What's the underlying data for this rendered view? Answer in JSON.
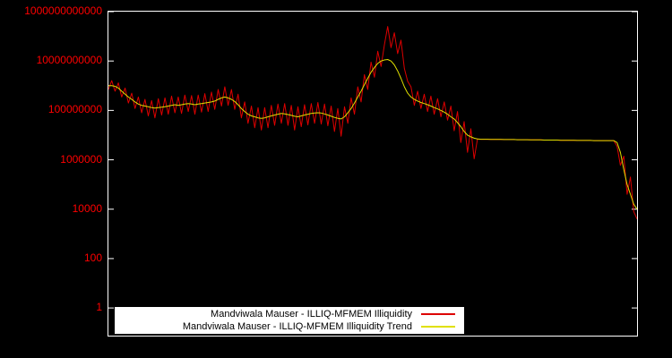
{
  "figure": {
    "background": "#000000",
    "frame_color": "#ffffff",
    "tick_label_color": "#ff0000",
    "legend_background": "#ffffff",
    "series_color_illiquidity": "#dd0000",
    "series_color_trend": "#e0e000"
  },
  "chart_data": {
    "type": "line",
    "title": "",
    "xlabel": "",
    "ylabel": "",
    "grid": false,
    "legend_position": "bottom-center",
    "y_scale": "log",
    "ylog_range": [
      -1.12,
      12
    ],
    "y_ticks": [
      1,
      100,
      10000,
      1000000,
      100000000,
      10000000000,
      1000000000000
    ],
    "y_tick_labels": [
      "1",
      "100",
      "10000",
      "1000000",
      "100000000",
      "10000000000",
      "1000000000000"
    ],
    "series": [
      {
        "id": "illiquidity",
        "name": "Mandviwala Mauser - ILLIQ-MFMEM Illiquidity",
        "color": "#dd0000",
        "values": [
          700000000.0,
          1600000000.0,
          600000000.0,
          1300000000.0,
          350000000.0,
          800000000.0,
          200000000.0,
          500000000.0,
          120000000.0,
          350000000.0,
          80000000.0,
          280000000.0,
          60000000.0,
          250000000.0,
          50000000.0,
          300000000.0,
          65000000.0,
          320000000.0,
          70000000.0,
          380000000.0,
          80000000.0,
          350000000.0,
          75000000.0,
          420000000.0,
          90000000.0,
          400000000.0,
          70000000.0,
          420000000.0,
          85000000.0,
          480000000.0,
          90000000.0,
          550000000.0,
          110000000.0,
          700000000.0,
          150000000.0,
          900000000.0,
          160000000.0,
          700000000.0,
          110000000.0,
          450000000.0,
          50000000.0,
          220000000.0,
          30000000.0,
          150000000.0,
          20000000.0,
          130000000.0,
          16000000.0,
          130000000.0,
          20000000.0,
          160000000.0,
          25000000.0,
          180000000.0,
          30000000.0,
          190000000.0,
          25000000.0,
          160000000.0,
          16000000.0,
          140000000.0,
          22000000.0,
          170000000.0,
          26000000.0,
          190000000.0,
          30000000.0,
          210000000.0,
          28000000.0,
          180000000.0,
          24000000.0,
          150000000.0,
          14000000.0,
          120000000.0,
          9000000.0,
          140000000.0,
          30000000.0,
          320000000.0,
          70000000.0,
          900000000.0,
          220000000.0,
          2800000000.0,
          700000000.0,
          9000000000.0,
          2200000000.0,
          25000000000.0,
          6000000000.0,
          45000000000.0,
          250000000000.0,
          35000000000.0,
          140000000000.0,
          20000000000.0,
          70000000000.0,
          5000000000.0,
          1500000000.0,
          900000000.0,
          160000000.0,
          600000000.0,
          120000000.0,
          450000000.0,
          90000000.0,
          380000000.0,
          70000000.0,
          300000000.0,
          55000000.0,
          220000000.0,
          40000000.0,
          150000000.0,
          15000000.0,
          90000000.0,
          5000000.0,
          35000000.0,
          2000000.0,
          18000000.0,
          1100000.0,
          7000000.0,
          6800000.0,
          6800000.0,
          6800000.0,
          6700000.0,
          6700000.0,
          6700000.0,
          6700000.0,
          6600000.0,
          6600000.0,
          6600000.0,
          6600000.0,
          6500000.0,
          6500000.0,
          6500000.0,
          6500000.0,
          6400000.0,
          6400000.0,
          6400000.0,
          6400000.0,
          6300000.0,
          6300000.0,
          6300000.0,
          6300000.0,
          6300000.0,
          6200000.0,
          6200000.0,
          6200000.0,
          6200000.0,
          6200000.0,
          6100000.0,
          6100000.0,
          6100000.0,
          6100000.0,
          6100000.0,
          6000000.0,
          6000000.0,
          6000000.0,
          6000000.0,
          6000000.0,
          6000000.0,
          6000000.0,
          3500000.0,
          600000.0,
          1400000.0,
          40000.0,
          200000.0,
          8000.0,
          4000.0
        ]
      },
      {
        "id": "illiquidity_trend",
        "name": "Mandviwala Mauser - ILLIQ-MFMEM Illiquidity Trend",
        "color": "#e0e000",
        "values": [
          1000000000.0,
          1000000000.0,
          950000000.0,
          800000000.0,
          600000000.0,
          450000000.0,
          350000000.0,
          280000000.0,
          220000000.0,
          180000000.0,
          160000000.0,
          150000000.0,
          140000000.0,
          130000000.0,
          125000000.0,
          130000000.0,
          135000000.0,
          140000000.0,
          150000000.0,
          160000000.0,
          170000000.0,
          160000000.0,
          170000000.0,
          180000000.0,
          190000000.0,
          180000000.0,
          170000000.0,
          180000000.0,
          190000000.0,
          200000000.0,
          210000000.0,
          220000000.0,
          240000000.0,
          280000000.0,
          320000000.0,
          350000000.0,
          320000000.0,
          280000000.0,
          230000000.0,
          170000000.0,
          120000000.0,
          90000000.0,
          70000000.0,
          60000000.0,
          55000000.0,
          50000000.0,
          48000000.0,
          50000000.0,
          55000000.0,
          60000000.0,
          65000000.0,
          70000000.0,
          75000000.0,
          72000000.0,
          68000000.0,
          63000000.0,
          58000000.0,
          55000000.0,
          60000000.0,
          65000000.0,
          70000000.0,
          75000000.0,
          78000000.0,
          80000000.0,
          78000000.0,
          72000000.0,
          65000000.0,
          58000000.0,
          52000000.0,
          48000000.0,
          45000000.0,
          55000000.0,
          80000000.0,
          120000000.0,
          200000000.0,
          350000000.0,
          600000000.0,
          1100000000.0,
          2000000000.0,
          3500000000.0,
          5500000000.0,
          8000000000.0,
          10000000000.0,
          11000000000.0,
          11500000000.0,
          10000000000.0,
          7000000000.0,
          4000000000.0,
          2000000000.0,
          900000000.0,
          500000000.0,
          350000000.0,
          280000000.0,
          240000000.0,
          210000000.0,
          190000000.0,
          170000000.0,
          150000000.0,
          130000000.0,
          115000000.0,
          100000000.0,
          85000000.0,
          70000000.0,
          55000000.0,
          45000000.0,
          32000000.0,
          22000000.0,
          14000000.0,
          10000000.0,
          8500000.0,
          7500000.0,
          7000000.0,
          6800000.0,
          6800000.0,
          6800000.0,
          6700000.0,
          6700000.0,
          6700000.0,
          6700000.0,
          6600000.0,
          6600000.0,
          6600000.0,
          6600000.0,
          6500000.0,
          6500000.0,
          6500000.0,
          6500000.0,
          6400000.0,
          6400000.0,
          6400000.0,
          6400000.0,
          6300000.0,
          6300000.0,
          6300000.0,
          6300000.0,
          6300000.0,
          6200000.0,
          6200000.0,
          6200000.0,
          6200000.0,
          6200000.0,
          6100000.0,
          6100000.0,
          6100000.0,
          6100000.0,
          6100000.0,
          6000000.0,
          6000000.0,
          6000000.0,
          6000000.0,
          6000000.0,
          6000000.0,
          6000000.0,
          5000000.0,
          2000000.0,
          400000.0,
          100000.0,
          40000.0,
          16000.0,
          10000.0
        ]
      }
    ]
  }
}
